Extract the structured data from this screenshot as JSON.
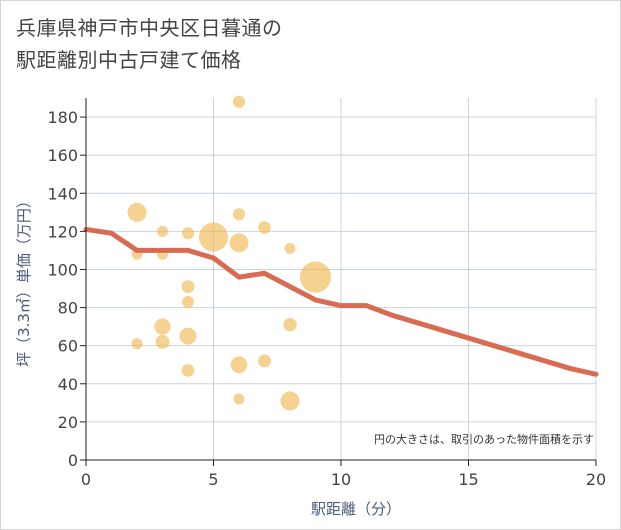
{
  "page": {
    "title_line1": "兵庫県神戸市中央区日暮通の",
    "title_line2": "駅距離別中古戸建て価格"
  },
  "chart_data": {
    "type": "scatter",
    "title": "兵庫県神戸市中央区日暮通の駅距離別中古戸建て価格",
    "xlabel": "駅距離（分）",
    "ylabel": "坪（3.3㎡）単価（万円）",
    "xlim": [
      0,
      20
    ],
    "ylim": [
      0,
      190
    ],
    "x_ticks": [
      0,
      5,
      10,
      15,
      20
    ],
    "y_ticks": [
      0,
      20,
      40,
      60,
      80,
      100,
      120,
      140,
      160,
      180
    ],
    "grid": true,
    "note": "円の大きさは、取引のあった物件面積を示す",
    "colors": {
      "bubble": "#f0b74d",
      "line": "#d96b52",
      "grid": "#c8d4e0"
    },
    "scatter": [
      {
        "x": 2,
        "y": 130,
        "size": 3
      },
      {
        "x": 2,
        "y": 108,
        "size": 1
      },
      {
        "x": 2,
        "y": 61,
        "size": 1
      },
      {
        "x": 3,
        "y": 120,
        "size": 1
      },
      {
        "x": 3,
        "y": 108,
        "size": 1
      },
      {
        "x": 3,
        "y": 70,
        "size": 2.2
      },
      {
        "x": 3,
        "y": 62,
        "size": 1.6
      },
      {
        "x": 4,
        "y": 119,
        "size": 1.2
      },
      {
        "x": 4,
        "y": 91,
        "size": 1.4
      },
      {
        "x": 4,
        "y": 83,
        "size": 1.2
      },
      {
        "x": 4,
        "y": 65,
        "size": 2.4
      },
      {
        "x": 4,
        "y": 47,
        "size": 1.3
      },
      {
        "x": 5,
        "y": 117,
        "size": 7
      },
      {
        "x": 6,
        "y": 188,
        "size": 1.2
      },
      {
        "x": 6,
        "y": 129,
        "size": 1.2
      },
      {
        "x": 6,
        "y": 114,
        "size": 3
      },
      {
        "x": 6,
        "y": 50,
        "size": 2.3
      },
      {
        "x": 6,
        "y": 32,
        "size": 1
      },
      {
        "x": 7,
        "y": 122,
        "size": 1.3
      },
      {
        "x": 7,
        "y": 52,
        "size": 1.4
      },
      {
        "x": 8,
        "y": 111,
        "size": 1
      },
      {
        "x": 8,
        "y": 71,
        "size": 1.5
      },
      {
        "x": 8,
        "y": 31,
        "size": 3
      },
      {
        "x": 9,
        "y": 96,
        "size": 8
      }
    ],
    "trend_line": {
      "x": [
        0,
        1,
        2,
        3,
        4,
        5,
        6,
        7,
        8,
        9,
        10,
        11,
        12,
        13,
        14,
        15,
        16,
        17,
        18,
        19,
        20
      ],
      "y": [
        121,
        119,
        110,
        110,
        110,
        106,
        96,
        98,
        91,
        84,
        81,
        81,
        76,
        72,
        68,
        64,
        60,
        56,
        52,
        48,
        45
      ]
    }
  }
}
